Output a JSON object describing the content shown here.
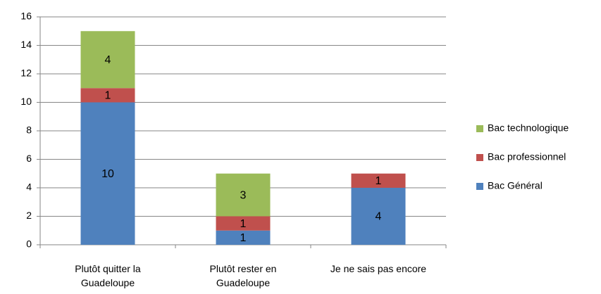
{
  "chart_data": {
    "type": "stacked_bar",
    "categories": [
      "Plutôt quitter la Guadeloupe",
      "Plutôt rester en Guadeloupe",
      "Je ne sais pas encore"
    ],
    "series": [
      {
        "name": "Bac Général",
        "color": "#4f81bd",
        "values": [
          10,
          1,
          4
        ]
      },
      {
        "name": "Bac professionnel",
        "color": "#c0504d",
        "values": [
          1,
          1,
          1
        ]
      },
      {
        "name": "Bac technologique",
        "color": "#9bbb59",
        "values": [
          4,
          3,
          null
        ]
      }
    ],
    "ylim": [
      0,
      16
    ],
    "yticks": [
      0,
      2,
      4,
      6,
      8,
      10,
      12,
      14,
      16
    ],
    "grid": true,
    "legend": "right"
  }
}
